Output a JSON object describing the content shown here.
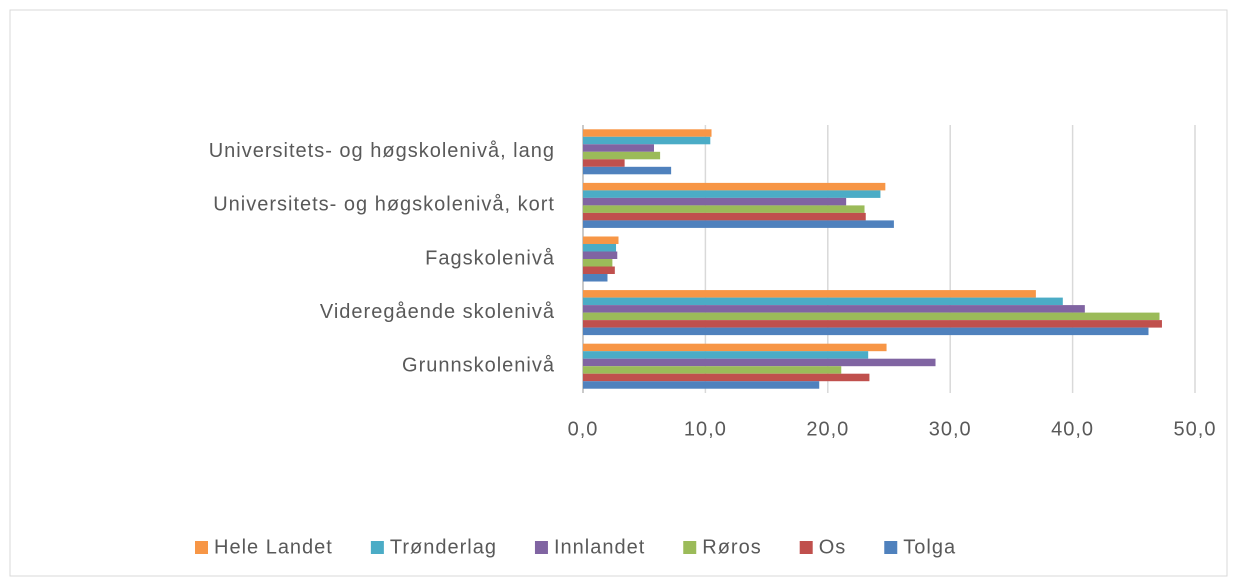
{
  "chart_data": {
    "type": "hbar",
    "categories": [
      "Universitets- og høgskolenivå, lang",
      "Universitets- og høgskolenivå, kort",
      "Fagskolenivå",
      "Videregående skolenivå",
      "Grunnskolenivå"
    ],
    "series": [
      {
        "name": "Hele Landet",
        "color": "#f79646",
        "values": [
          10.5,
          24.7,
          2.9,
          37.0,
          24.8
        ]
      },
      {
        "name": "Trønderlag",
        "color": "#4bacc6",
        "values": [
          10.4,
          24.3,
          2.7,
          39.2,
          23.3
        ]
      },
      {
        "name": "Innlandet",
        "color": "#8064a2",
        "values": [
          5.8,
          21.5,
          2.8,
          41.0,
          28.8
        ]
      },
      {
        "name": "Røros",
        "color": "#9bbb59",
        "values": [
          6.3,
          23.0,
          2.4,
          47.1,
          21.1
        ]
      },
      {
        "name": "Os",
        "color": "#c0504d",
        "values": [
          3.4,
          23.1,
          2.6,
          47.3,
          23.4
        ]
      },
      {
        "name": "Tolga",
        "color": "#4f81bd",
        "values": [
          7.2,
          25.4,
          2.0,
          46.2,
          19.3
        ]
      }
    ],
    "xlim": [
      0,
      50
    ],
    "xticks": [
      {
        "value": 0,
        "label": "0,0"
      },
      {
        "value": 10,
        "label": "10,0"
      },
      {
        "value": 20,
        "label": "20,0"
      },
      {
        "value": 30,
        "label": "30,0"
      },
      {
        "value": 40,
        "label": "40,0"
      },
      {
        "value": 50,
        "label": "50,0"
      }
    ],
    "grid": true,
    "legend": "bottom"
  }
}
